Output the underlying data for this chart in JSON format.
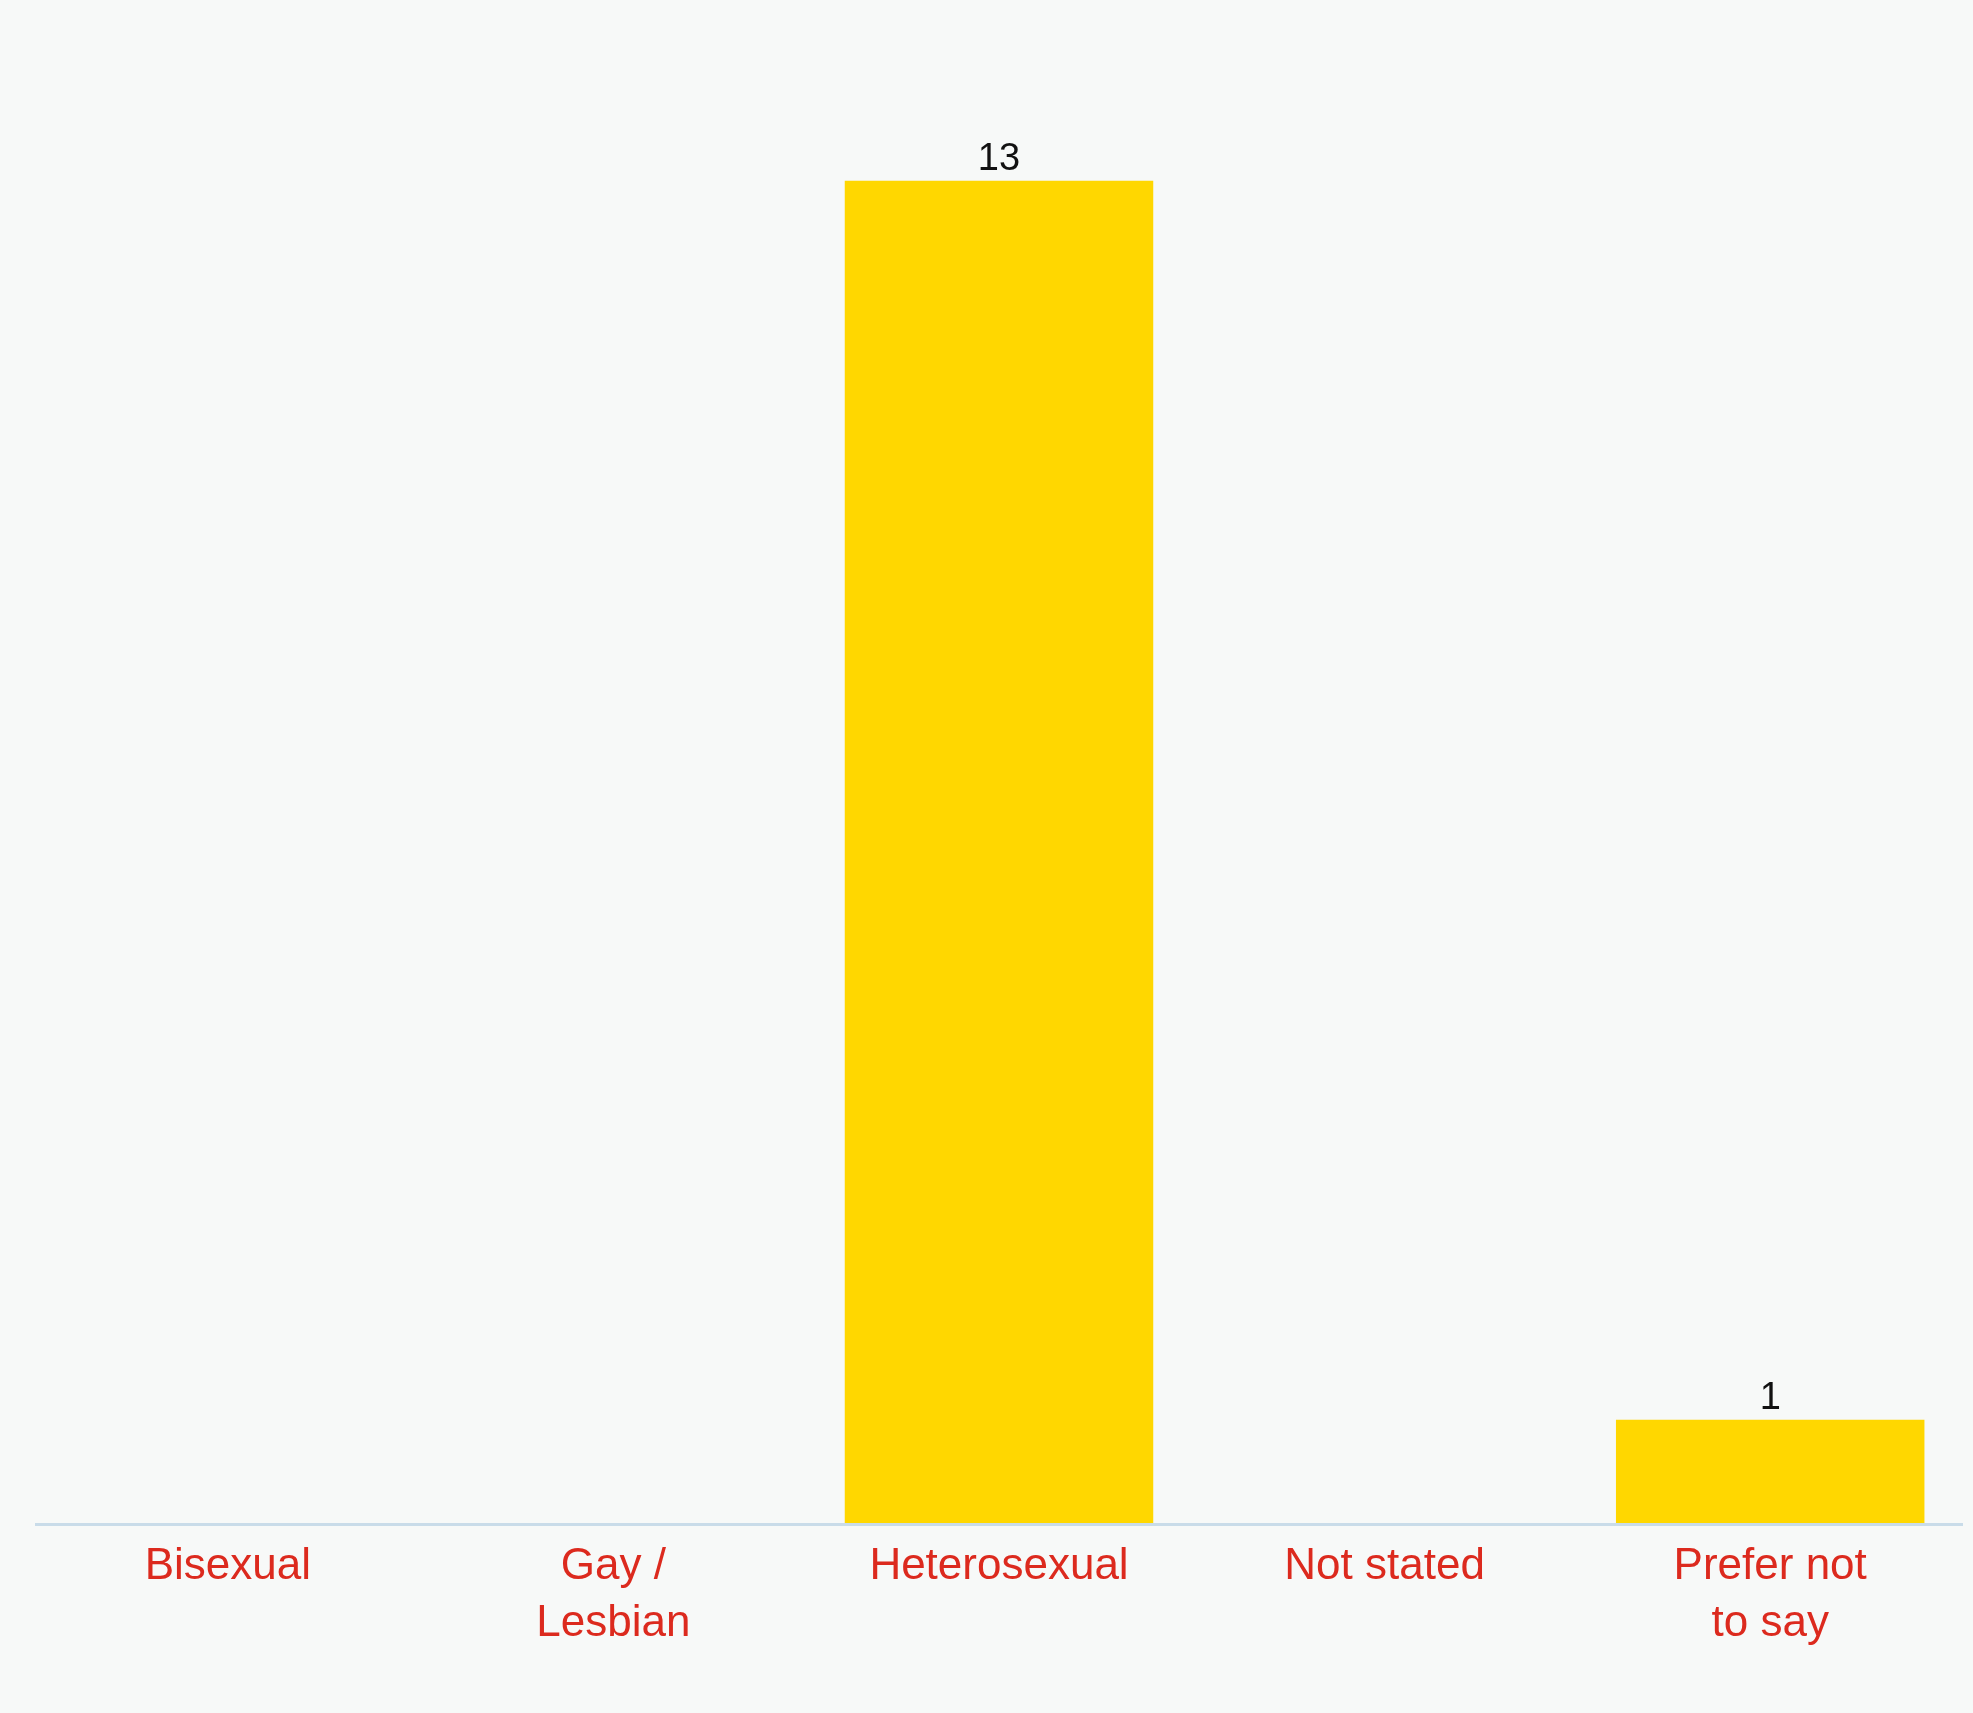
{
  "chart_data": {
    "type": "bar",
    "categories": [
      "Bisexual",
      "Gay / Lesbian",
      "Heterosexual",
      "Not stated",
      "Prefer not to say"
    ],
    "values": [
      null,
      null,
      13,
      null,
      1
    ],
    "color": "#ffd700",
    "data_labels": true,
    "grid": false,
    "legend": false
  }
}
